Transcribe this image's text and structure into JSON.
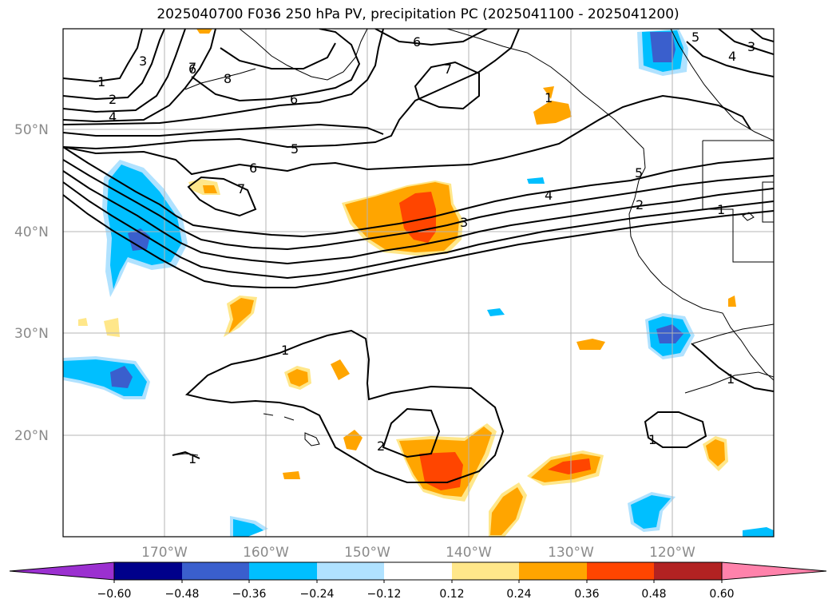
{
  "title": "2025040700 F036 250 hPa PV, precipitation PC (2025041100 - 2025041200)",
  "map": {
    "lat_labels": [
      "50°N",
      "40°N",
      "30°N",
      "20°N"
    ],
    "lon_labels": [
      "170°W",
      "160°W",
      "150°W",
      "140°W",
      "130°W",
      "120°W"
    ],
    "contour_labels": [
      "1",
      "2",
      "3",
      "4",
      "6",
      "7",
      "8",
      "5",
      "6",
      "7",
      "6",
      "7",
      "5",
      "4",
      "3",
      "2",
      "1",
      "3",
      "5",
      "4",
      "1",
      "1",
      "2",
      "1",
      "1",
      "1"
    ]
  },
  "colorbar": {
    "ticks": [
      "−0.60",
      "−0.48",
      "−0.36",
      "−0.24",
      "−0.12",
      "0.12",
      "0.24",
      "0.36",
      "0.48",
      "0.60"
    ],
    "colors": [
      "#9b30d0",
      "#00008b",
      "#3a5fcd",
      "#00bfff",
      "#b0e2ff",
      "#ffffff",
      "#ffe78a",
      "#ffa500",
      "#ff4500",
      "#b22222",
      "#ff82ab"
    ]
  }
}
